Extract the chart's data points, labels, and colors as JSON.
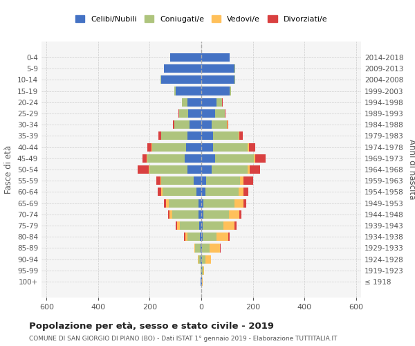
{
  "age_groups": [
    "100+",
    "95-99",
    "90-94",
    "85-89",
    "80-84",
    "75-79",
    "70-74",
    "65-69",
    "60-64",
    "55-59",
    "50-54",
    "45-49",
    "40-44",
    "35-39",
    "30-34",
    "25-29",
    "20-24",
    "15-19",
    "10-14",
    "5-9",
    "0-4"
  ],
  "birth_years": [
    "≤ 1918",
    "1919-1923",
    "1924-1928",
    "1929-1933",
    "1934-1938",
    "1939-1943",
    "1944-1948",
    "1949-1953",
    "1954-1958",
    "1959-1963",
    "1964-1968",
    "1969-1973",
    "1974-1978",
    "1979-1983",
    "1984-1988",
    "1989-1993",
    "1994-1998",
    "1999-2003",
    "2004-2008",
    "2009-2013",
    "2014-2018"
  ],
  "male": {
    "celibi": [
      2,
      1,
      2,
      3,
      5,
      8,
      12,
      12,
      20,
      30,
      55,
      65,
      60,
      55,
      45,
      50,
      55,
      100,
      155,
      145,
      120
    ],
    "coniugati": [
      2,
      3,
      8,
      20,
      50,
      75,
      100,
      115,
      130,
      125,
      145,
      145,
      130,
      100,
      60,
      35,
      20,
      5,
      3,
      1,
      0
    ],
    "vedovi": [
      0,
      0,
      3,
      5,
      8,
      10,
      12,
      10,
      5,
      4,
      3,
      2,
      2,
      1,
      0,
      0,
      0,
      0,
      0,
      0,
      0
    ],
    "divorziati": [
      0,
      0,
      0,
      0,
      5,
      5,
      5,
      8,
      15,
      15,
      45,
      15,
      18,
      10,
      5,
      3,
      1,
      0,
      0,
      0,
      0
    ]
  },
  "female": {
    "nubili": [
      2,
      2,
      2,
      3,
      5,
      5,
      8,
      8,
      15,
      20,
      40,
      55,
      45,
      45,
      40,
      55,
      60,
      110,
      130,
      130,
      110
    ],
    "coniugate": [
      2,
      5,
      15,
      30,
      55,
      80,
      100,
      120,
      130,
      130,
      140,
      150,
      135,
      100,
      60,
      35,
      20,
      5,
      2,
      1,
      0
    ],
    "vedove": [
      2,
      5,
      20,
      40,
      45,
      45,
      40,
      35,
      20,
      15,
      8,
      5,
      5,
      2,
      1,
      0,
      0,
      0,
      0,
      0,
      0
    ],
    "divorziate": [
      0,
      0,
      0,
      2,
      5,
      8,
      8,
      12,
      18,
      35,
      40,
      40,
      25,
      15,
      5,
      5,
      3,
      0,
      0,
      0,
      0
    ]
  },
  "colors": {
    "celibi": "#4472c4",
    "coniugati": "#aec47d",
    "vedovi": "#ffc05a",
    "divorziati": "#d94040"
  },
  "xlim": [
    -620,
    620
  ],
  "xticks": [
    -600,
    -400,
    -200,
    0,
    200,
    400,
    600
  ],
  "xtick_labels": [
    "600",
    "400",
    "200",
    "0",
    "200",
    "400",
    "600"
  ],
  "title": "Popolazione per età, sesso e stato civile - 2019",
  "subtitle": "COMUNE DI SAN GIORGIO DI PIANO (BO) - Dati ISTAT 1° gennaio 2019 - Elaborazione TUTTITALIA.IT",
  "ylabel_left": "Fasce di età",
  "ylabel_right": "Anni di nascita",
  "legend_labels": [
    "Celibi/Nubili",
    "Coniugati/e",
    "Vedovi/e",
    "Divorziati/e"
  ],
  "background_color": "#f5f5f5",
  "grid_color": "#cccccc"
}
